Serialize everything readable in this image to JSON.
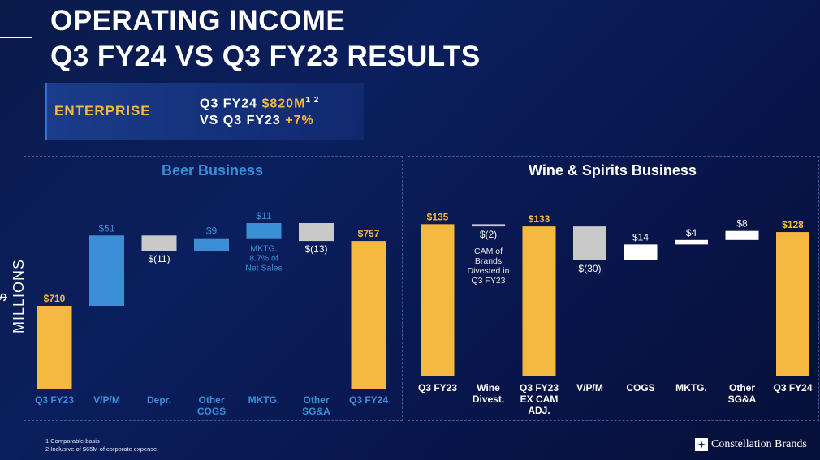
{
  "header": {
    "title_line1": "OPERATING INCOME",
    "title_line2": "Q3 FY24 VS Q3 FY23 RESULTS"
  },
  "enterprise": {
    "label": "ENTERPRISE",
    "line1_prefix": "Q3 FY24 ",
    "line1_value": "$820M",
    "line1_sup": "1 2",
    "line2_prefix": "VS Q3 FY23 ",
    "line2_value": "+7%"
  },
  "y_axis_label": "$ MILLIONS",
  "colors": {
    "gold": "#f5b942",
    "blue": "#3a8fd6",
    "gray": "#c9c9c9",
    "white": "#ffffff",
    "beer_title": "#3a8fd6"
  },
  "chart_data": [
    {
      "type": "bar",
      "title": "Beer Business",
      "categories": [
        "Q3 FY23",
        "V/P/M",
        "Depr.",
        "Other\nCOGS",
        "MKTG.",
        "Other\nSG&A",
        "Q3 FY24"
      ],
      "values": [
        710,
        51,
        -11,
        9,
        11,
        -13,
        757
      ],
      "kinds": [
        "total",
        "delta",
        "delta",
        "delta",
        "delta",
        "delta",
        "total"
      ],
      "labels": [
        "$710",
        "$51",
        "$(11)",
        "$9",
        "$11",
        "$(13)",
        "$757"
      ],
      "bar_colors": [
        "gold",
        "blue",
        "gray",
        "blue",
        "blue",
        "gray",
        "gold"
      ],
      "annotations": [
        {
          "category": "MKTG.",
          "text": "MKTG.\n8.7% of\nNet Sales"
        }
      ]
    },
    {
      "type": "bar",
      "title": "Wine & Spirits Business",
      "categories": [
        "Q3 FY23",
        "Wine\nDivest.",
        "Q3 FY23\nEX CAM\nADJ.",
        "V/P/M",
        "COGS",
        "MKTG.",
        "Other\nSG&A",
        "Q3 FY24"
      ],
      "values": [
        135,
        -2,
        133,
        -30,
        14,
        4,
        8,
        128
      ],
      "kinds": [
        "total",
        "delta",
        "total",
        "delta",
        "delta",
        "delta",
        "delta",
        "total"
      ],
      "labels": [
        "$135",
        "$(2)",
        "$133",
        "$(30)",
        "$14",
        "$4",
        "$8",
        "$128"
      ],
      "bar_colors": [
        "gold",
        "gray",
        "gold",
        "gray",
        "white",
        "white",
        "white",
        "gold"
      ],
      "annotations": [
        {
          "category": "Wine\nDivest.",
          "text": "CAM of\nBrands\nDivested in\nQ3 FY23"
        }
      ]
    }
  ],
  "footnotes": [
    "1 Comparable basis",
    "2 Inclusive of $65M of corporate expense."
  ],
  "logo_text": "Constellation Brands"
}
